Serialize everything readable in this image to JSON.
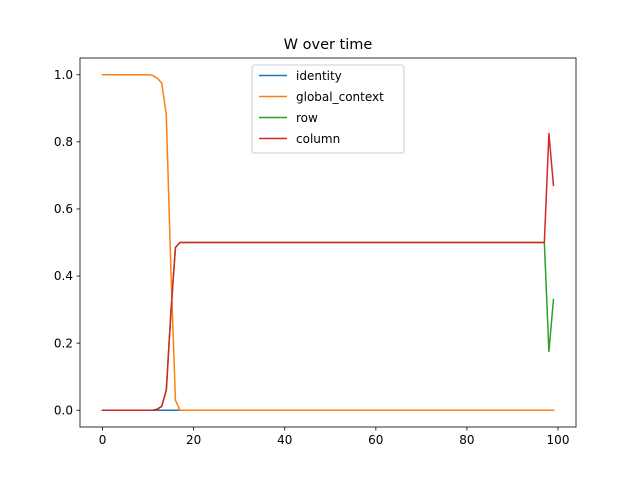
{
  "chart_data": {
    "type": "line",
    "title": "W over time",
    "xlabel": "",
    "ylabel": "",
    "xlim": [
      -4.95,
      103.95
    ],
    "ylim": [
      -0.05,
      1.05
    ],
    "xticks": [
      0,
      20,
      40,
      60,
      80,
      100
    ],
    "yticks": [
      0.0,
      0.2,
      0.4,
      0.6,
      0.8,
      1.0
    ],
    "xtick_labels": [
      "0",
      "20",
      "40",
      "60",
      "80",
      "100"
    ],
    "ytick_labels": [
      "0.0",
      "0.2",
      "0.4",
      "0.6",
      "0.8",
      "1.0"
    ],
    "grid": false,
    "legend_position": "top-center",
    "series": [
      {
        "name": "identity",
        "color": "#1f77b4",
        "points": [
          [
            0,
            0.0
          ],
          [
            99,
            0.0
          ]
        ]
      },
      {
        "name": "global_context",
        "color": "#ff7f0e",
        "points": [
          [
            0,
            1.0
          ],
          [
            10,
            1.0
          ],
          [
            11,
            0.998
          ],
          [
            12,
            0.99
          ],
          [
            13,
            0.975
          ],
          [
            14,
            0.88
          ],
          [
            15,
            0.42
          ],
          [
            16,
            0.03
          ],
          [
            17,
            0.0
          ],
          [
            99,
            0.0
          ]
        ]
      },
      {
        "name": "row",
        "color": "#2ca02c",
        "points": [
          [
            0,
            0.0
          ],
          [
            11,
            0.0
          ],
          [
            12,
            0.003
          ],
          [
            13,
            0.012
          ],
          [
            14,
            0.06
          ],
          [
            15,
            0.29
          ],
          [
            16,
            0.485
          ],
          [
            17,
            0.5
          ],
          [
            97,
            0.5
          ],
          [
            98,
            0.175
          ],
          [
            99,
            0.33
          ]
        ]
      },
      {
        "name": "column",
        "color": "#d62728",
        "points": [
          [
            0,
            0.0
          ],
          [
            11,
            0.0
          ],
          [
            12,
            0.003
          ],
          [
            13,
            0.012
          ],
          [
            14,
            0.06
          ],
          [
            15,
            0.29
          ],
          [
            16,
            0.485
          ],
          [
            17,
            0.5
          ],
          [
            97,
            0.5
          ],
          [
            98,
            0.825
          ],
          [
            99,
            0.67
          ]
        ]
      }
    ]
  }
}
